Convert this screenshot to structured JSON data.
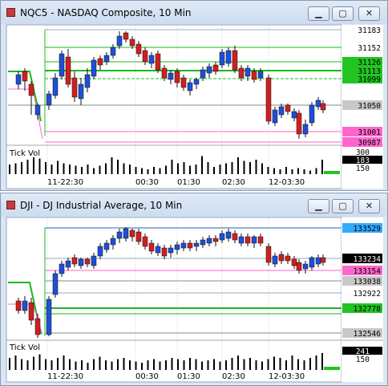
{
  "windows": [
    {
      "title": "NQC5 - NASDAQ Composite, 10 Min",
      "buttons": {
        "minimize": "▁",
        "maximize": "▢",
        "close": "✕"
      },
      "price_axis": [
        {
          "text": "31183",
          "bg": "#ffffff",
          "fg": "#000000",
          "price": 31183
        },
        {
          "text": "31152",
          "bg": "#ffffff",
          "fg": "#000000",
          "price": 31152
        },
        {
          "text": "31126",
          "bg": "#22c422",
          "fg": "#000000",
          "price": 31126
        },
        {
          "text": "31113",
          "bg": "#22c422",
          "fg": "#000000",
          "price": 31113
        },
        {
          "text": "31099",
          "bg": "#22c422",
          "fg": "#000000",
          "price": 31099
        },
        {
          "text": "31050",
          "bg": "#c8c8c8",
          "fg": "#000000",
          "price": 31050
        },
        {
          "text": "31001",
          "bg": "#ff66cc",
          "fg": "#000000",
          "price": 31001
        },
        {
          "text": "30987",
          "bg": "#ff66cc",
          "fg": "#000000",
          "price": 30987
        }
      ],
      "volume_label": "Tick Vol",
      "volume_axis": [
        {
          "text": "300",
          "bg": "#ffffff",
          "fg": "#000000"
        },
        {
          "text": "183",
          "bg": "#000000",
          "fg": "#ffffff"
        },
        {
          "text": "150",
          "bg": "#ffffff",
          "fg": "#000000"
        }
      ],
      "time_labels": [
        "11-22:30",
        "00:30",
        "01:30",
        "02:30",
        "12-03:30"
      ]
    },
    {
      "title": "DJI - DJ Industrial Average, 10 Min",
      "buttons": {
        "minimize": "▁",
        "maximize": "▢",
        "close": "✕"
      },
      "price_axis": [
        {
          "text": "133529",
          "bg": "#33aaff",
          "fg": "#000000",
          "price": 133529
        },
        {
          "text": "133234",
          "bg": "#000000",
          "fg": "#ffffff",
          "price": 133234
        },
        {
          "text": "133154",
          "bg": "#ff66cc",
          "fg": "#000000",
          "price": 133154
        },
        {
          "text": "133038",
          "bg": "#c8c8c8",
          "fg": "#000000",
          "price": 133038
        },
        {
          "text": "132922",
          "bg": "#ffffff",
          "fg": "#000000",
          "price": 132922
        },
        {
          "text": "132778",
          "bg": "#22c422",
          "fg": "#000000",
          "price": 132778
        },
        {
          "text": "132546",
          "bg": "#c8c8c8",
          "fg": "#000000",
          "price": 132546
        }
      ],
      "volume_label": "Tick Vol",
      "volume_axis": [
        {
          "text": "241",
          "bg": "#000000",
          "fg": "#ffffff"
        },
        {
          "text": "150",
          "bg": "#ffffff",
          "fg": "#000000"
        }
      ],
      "time_labels": [
        "11-22:30",
        "00:30",
        "01:30",
        "02:30",
        "12-03:30"
      ]
    }
  ],
  "colors": {
    "up": "#1f4fd6",
    "down": "#d11f1f",
    "green_line": "#1db81d",
    "pink_line": "#ff66cc",
    "gray_line": "#888888",
    "blue_line": "#1a66c4",
    "vol_green": "#22c422"
  }
}
